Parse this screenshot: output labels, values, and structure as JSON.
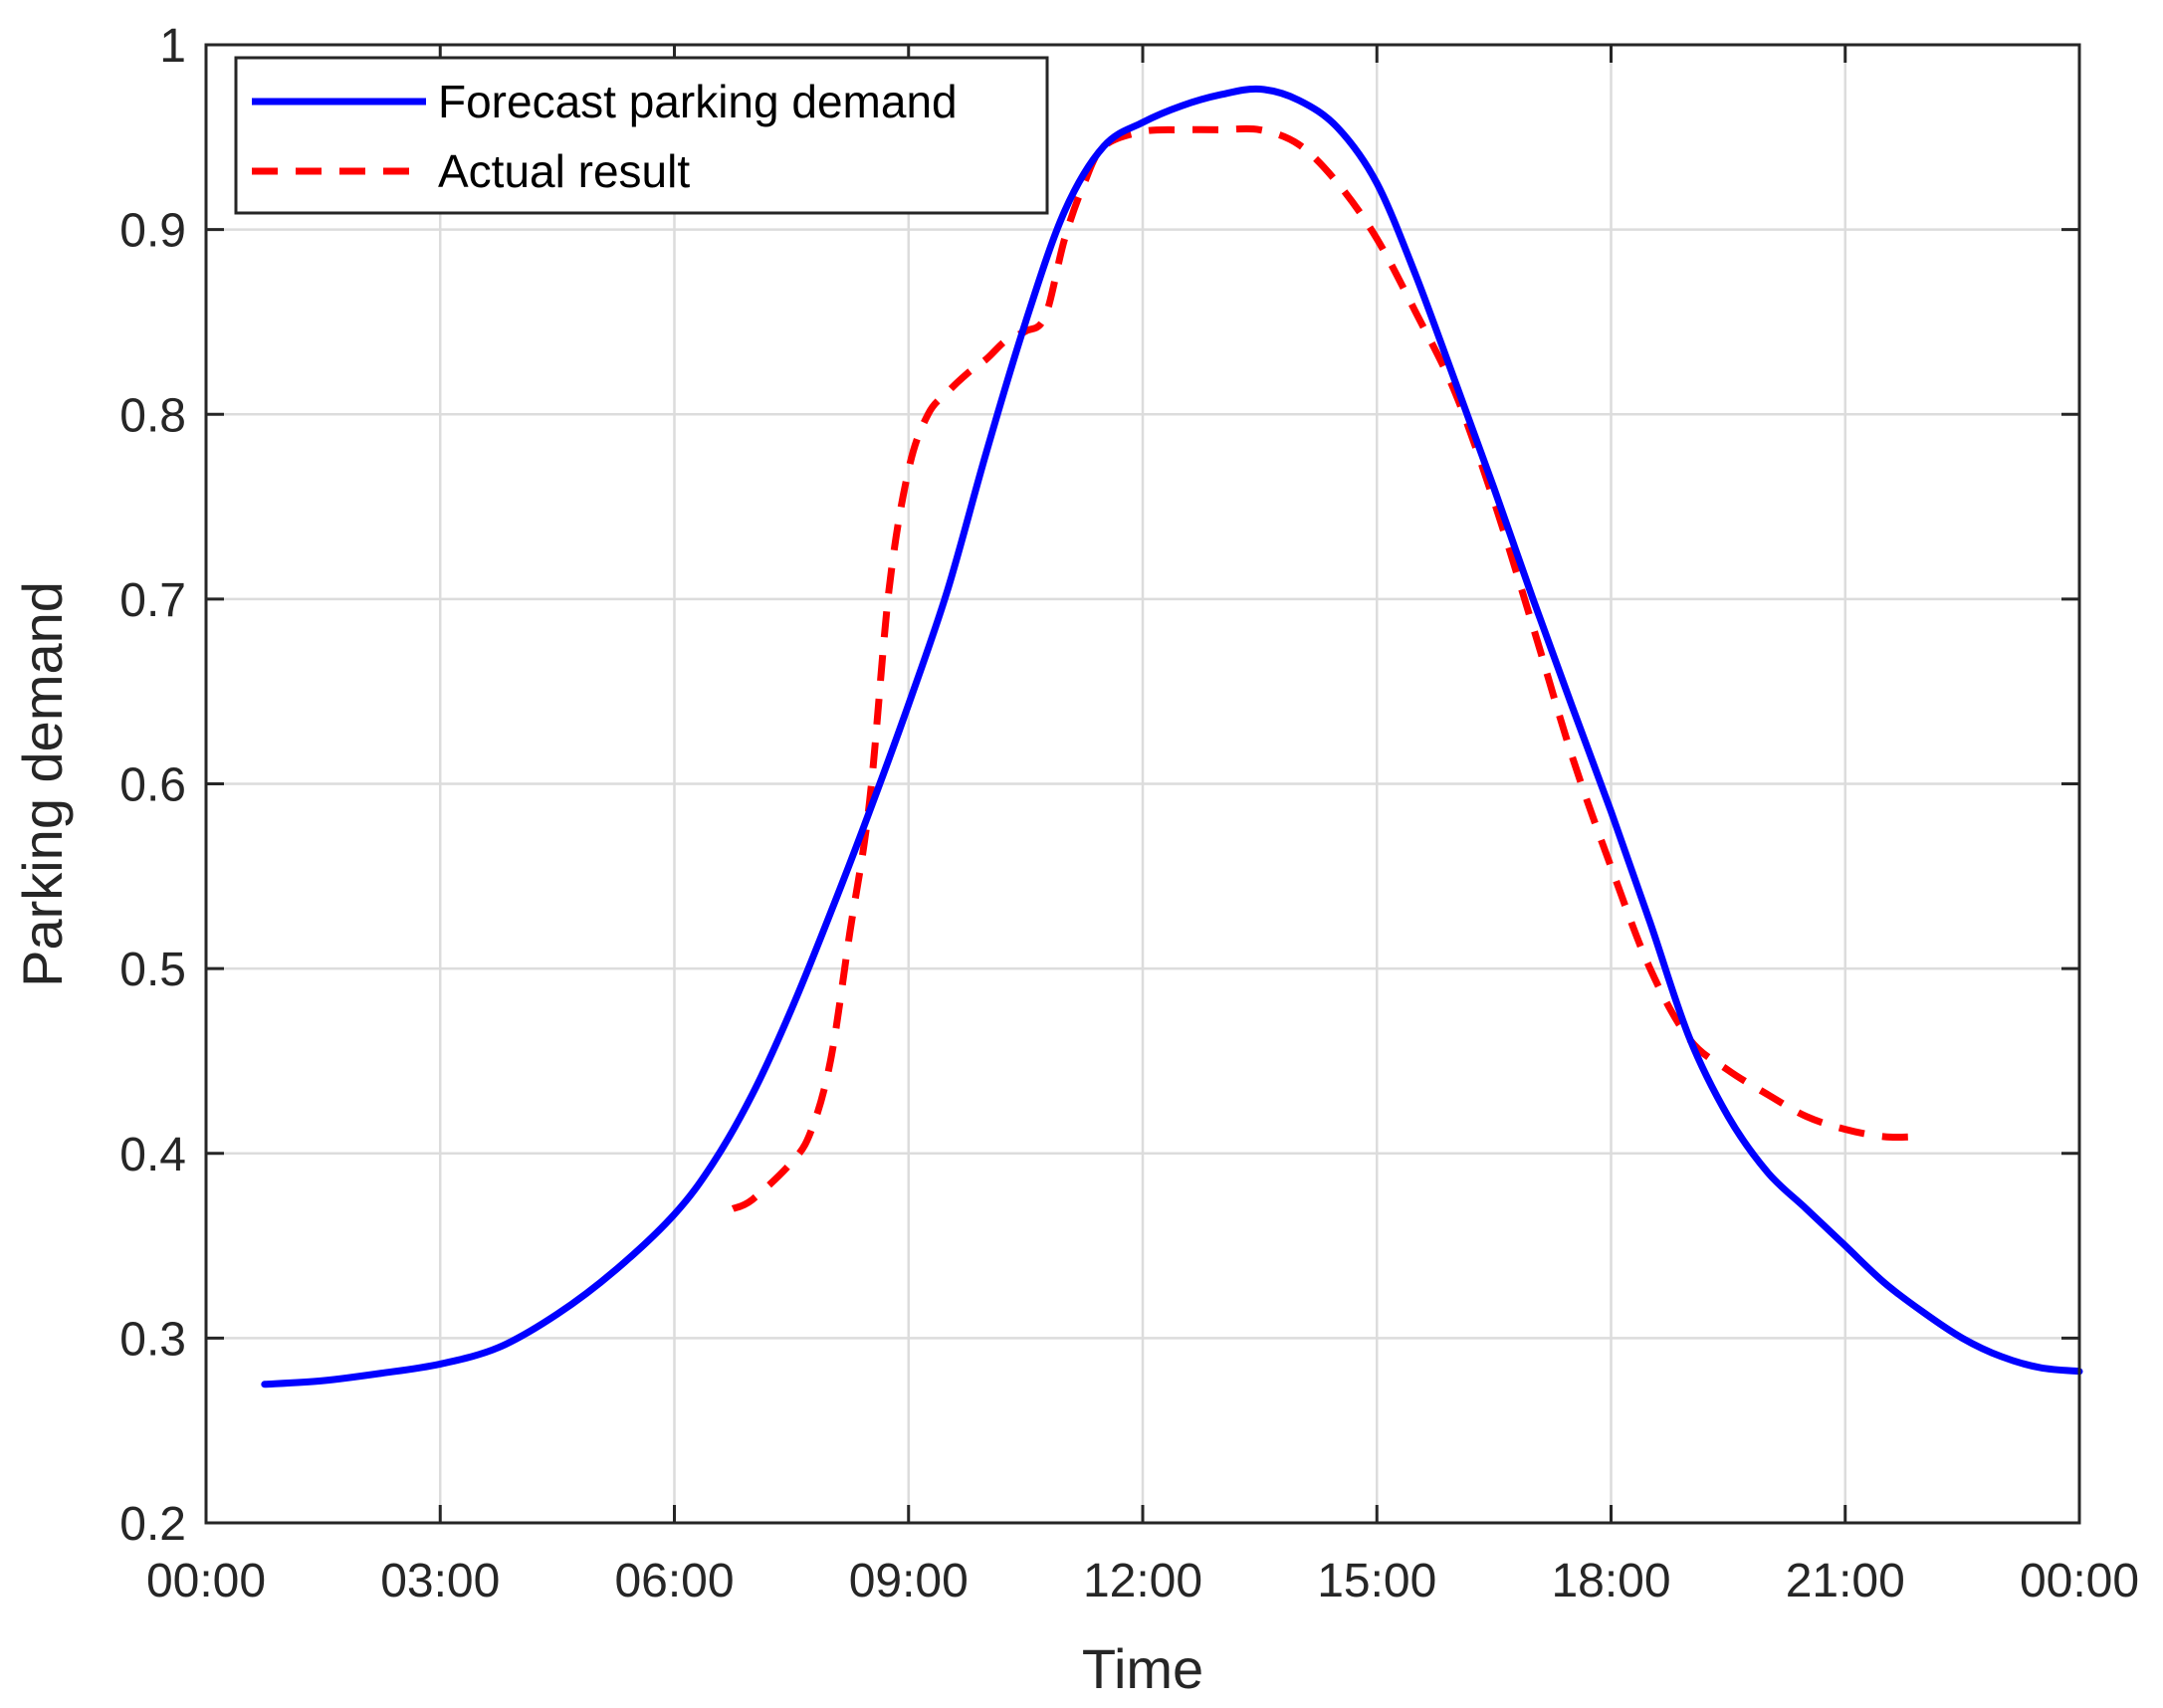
{
  "chart_data": {
    "type": "line",
    "title": "",
    "xlabel": "Time",
    "ylabel": "Parking demand",
    "x_unit": "hours",
    "xlim": [
      0,
      24
    ],
    "ylim": [
      0.2,
      1.0
    ],
    "xticks": [
      0,
      3,
      6,
      9,
      12,
      15,
      18,
      21,
      24
    ],
    "xtick_labels": [
      "00:00",
      "03:00",
      "06:00",
      "09:00",
      "12:00",
      "15:00",
      "18:00",
      "21:00",
      "00:00"
    ],
    "yticks": [
      0.2,
      0.3,
      0.4,
      0.5,
      0.6,
      0.7,
      0.8,
      0.9,
      1.0
    ],
    "ytick_labels": [
      "0.2",
      "0.3",
      "0.4",
      "0.5",
      "0.6",
      "0.7",
      "0.8",
      "0.9",
      "1"
    ],
    "grid": true,
    "legend_position": "top-left",
    "series": [
      {
        "name": "Forecast parking demand",
        "color": "#0000ff",
        "style": "solid",
        "x": [
          0.75,
          1.5,
          2.25,
          3.0,
          3.75,
          4.5,
          5.25,
          6.0,
          6.5,
          7.0,
          7.5,
          8.0,
          8.5,
          9.0,
          9.5,
          10.0,
          10.5,
          11.0,
          11.5,
          12.0,
          12.5,
          13.0,
          13.5,
          14.0,
          14.5,
          15.0,
          15.5,
          16.0,
          16.5,
          17.0,
          17.5,
          18.0,
          18.5,
          19.0,
          19.5,
          20.0,
          20.5,
          21.0,
          21.5,
          22.0,
          22.5,
          23.0,
          23.5,
          24.0
        ],
        "y": [
          0.275,
          0.277,
          0.281,
          0.286,
          0.295,
          0.313,
          0.337,
          0.367,
          0.395,
          0.432,
          0.478,
          0.53,
          0.585,
          0.643,
          0.705,
          0.78,
          0.85,
          0.91,
          0.945,
          0.958,
          0.967,
          0.973,
          0.976,
          0.97,
          0.955,
          0.925,
          0.875,
          0.818,
          0.76,
          0.7,
          0.642,
          0.585,
          0.525,
          0.463,
          0.42,
          0.39,
          0.37,
          0.35,
          0.33,
          0.314,
          0.3,
          0.29,
          0.284,
          0.282
        ]
      },
      {
        "name": "Actual result",
        "color": "#ff0000",
        "style": "dashed",
        "x": [
          6.75,
          7.0,
          7.5,
          7.75,
          8.0,
          8.25,
          8.5,
          8.75,
          9.0,
          9.25,
          9.5,
          9.75,
          10.0,
          10.25,
          10.5,
          10.75,
          11.0,
          11.25,
          11.5,
          12.0,
          12.5,
          13.0,
          13.5,
          14.0,
          14.5,
          15.0,
          15.5,
          16.0,
          16.5,
          17.0,
          17.5,
          18.0,
          18.5,
          19.0,
          19.5,
          20.0,
          20.5,
          21.0,
          21.5,
          21.9
        ],
        "y": [
          0.37,
          0.375,
          0.395,
          0.412,
          0.45,
          0.52,
          0.59,
          0.705,
          0.77,
          0.8,
          0.812,
          0.822,
          0.83,
          0.84,
          0.845,
          0.853,
          0.895,
          0.925,
          0.945,
          0.953,
          0.954,
          0.954,
          0.954,
          0.946,
          0.925,
          0.895,
          0.855,
          0.812,
          0.753,
          0.685,
          0.615,
          0.555,
          0.5,
          0.462,
          0.445,
          0.432,
          0.42,
          0.413,
          0.409,
          0.409
        ]
      }
    ]
  }
}
